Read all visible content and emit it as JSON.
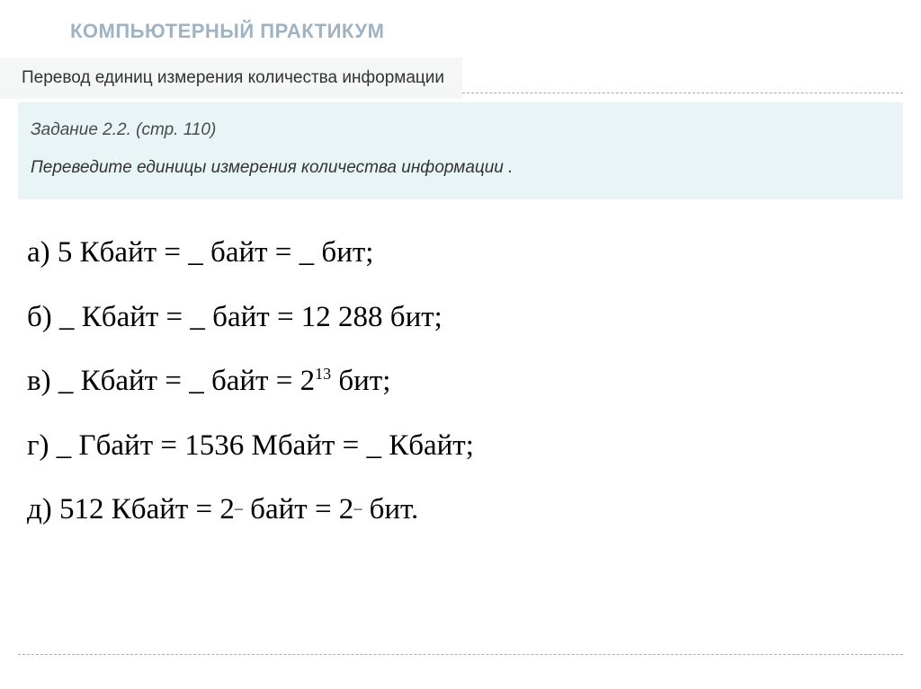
{
  "header": {
    "title": "КОМПЬЮТЕРНЫЙ ПРАКТИКУМ"
  },
  "section": {
    "label": "Перевод единиц измерения количества информации"
  },
  "task": {
    "number": "Задание 2.2. (стр. 110)",
    "text": "Переведите  единицы измерения количества информации ."
  },
  "answers": {
    "a_prefix": "а) 5 Кбайт = _ байт = _ бит;",
    "b_prefix": "б) _ Кбайт = _ байт = 12 288 бит;",
    "c_before": "в) _ Кбайт = _ байт = 2",
    "c_sup": "13",
    "c_after": " бит;",
    "g_prefix": "г) _ Гбайт = 1536 Мбайт = _ Кбайт;",
    "d_before1": "д) 512 Кбайт = 2",
    "d_sup1": "_",
    "d_mid": " байт = 2",
    "d_sup2": "_",
    "d_after": " бит."
  }
}
